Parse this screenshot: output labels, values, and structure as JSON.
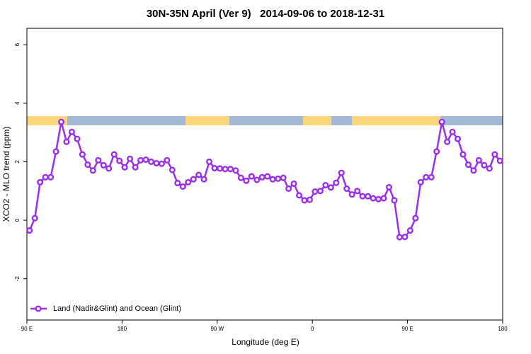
{
  "chart_data": {
    "type": "line",
    "title": "30N-35N April (Ver 9)   2014-09-06 to 2018-12-31",
    "xlabel": "Longitude (deg E)",
    "ylabel": "XCO2 - MLO trend (ppm)",
    "x": [
      92.5,
      97.5,
      102.5,
      107.5,
      112.5,
      117.5,
      122.5,
      127.5,
      132.5,
      137.5,
      142.5,
      147.5,
      152.5,
      157.5,
      162.5,
      167.5,
      172.5,
      177.5,
      182.5,
      187.5,
      192.5,
      197.5,
      202.5,
      207.5,
      212.5,
      217.5,
      222.5,
      227.5,
      232.5,
      237.5,
      242.5,
      247.5,
      252.5,
      257.5,
      262.5,
      267.5,
      272.5,
      277.5,
      282.5,
      287.5,
      292.5,
      297.5,
      302.5,
      307.5,
      312.5,
      317.5,
      322.5,
      327.5,
      332.5,
      337.5,
      342.5,
      347.5,
      352.5,
      357.5,
      362.5,
      367.5,
      372.5,
      377.5,
      382.5,
      387.5,
      392.5,
      397.5,
      402.5,
      407.5,
      412.5,
      417.5,
      422.5,
      427.5,
      432.5,
      437.5,
      442.5,
      447.5,
      452.5,
      457.5,
      462.5,
      467.5,
      472.5,
      477.5,
      482.5,
      487.5,
      492.5,
      497.5,
      502.5,
      507.5,
      512.5,
      517.5,
      522.5,
      527.5,
      532.5,
      537.5
    ],
    "series": [
      {
        "name": "Land (Nadir&Glint) and Ocean (Glint)",
        "color": "#9b30e8",
        "values": [
          -0.35,
          0.07,
          1.3,
          1.47,
          1.47,
          2.35,
          3.36,
          2.68,
          3.02,
          2.78,
          2.25,
          1.9,
          1.7,
          2.05,
          1.88,
          1.77,
          2.25,
          2.03,
          1.81,
          2.1,
          1.81,
          2.05,
          2.07,
          2.0,
          1.95,
          1.93,
          2.05,
          1.72,
          1.27,
          1.15,
          1.3,
          1.4,
          1.55,
          1.4,
          2.0,
          1.78,
          1.77,
          1.75,
          1.75,
          1.7,
          1.45,
          1.35,
          1.5,
          1.38,
          1.47,
          1.5,
          1.4,
          1.42,
          1.45,
          1.08,
          1.25,
          0.85,
          0.68,
          0.7,
          0.98,
          1.0,
          1.2,
          1.12,
          1.28,
          1.62,
          1.08,
          0.88,
          1.0,
          0.82,
          0.82,
          0.75,
          0.72,
          0.75,
          1.13,
          0.68,
          -0.58,
          -0.57,
          -0.35,
          0.07,
          1.3,
          1.47,
          1.47,
          2.35,
          3.36,
          2.68,
          3.02,
          2.78,
          2.25,
          1.9,
          1.7,
          2.05,
          1.88,
          1.77,
          2.25,
          2.03
        ]
      }
    ],
    "xlim": [
      90,
      540
    ],
    "xticks": [
      {
        "value": 90,
        "label": "90 E"
      },
      180,
      {
        "value": 270,
        "label": "90 W"
      },
      {
        "value": 360,
        "label": "0"
      },
      {
        "value": 450,
        "label": "90 E"
      },
      {
        "value": 540,
        "label": "180"
      }
    ],
    "ylim": [
      -3.41,
      6.56
    ],
    "yticks": [
      -2,
      0,
      2,
      4,
      6
    ],
    "legend": "bottom-left"
  }
}
